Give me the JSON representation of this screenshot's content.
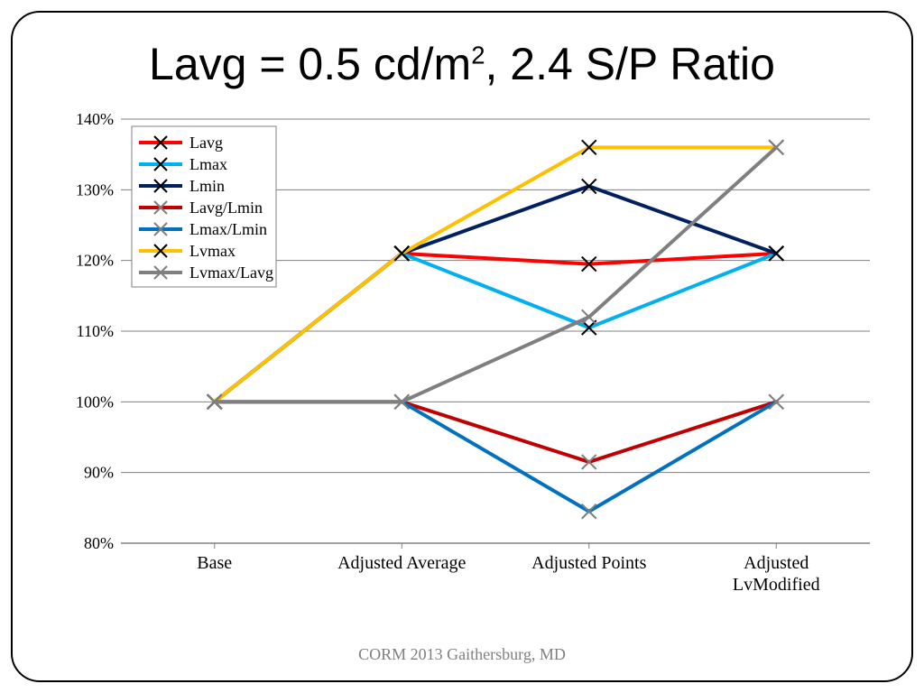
{
  "title_html": "Lavg = 0.5 cd/m<sup>2</sup>, 2.4 S/P Ratio",
  "footer": "CORM 2013 Gaithersburg, MD",
  "chart": {
    "type": "line",
    "categories": [
      "Base",
      "Adjusted Average",
      "Adjusted Points",
      "Adjusted LvModified"
    ],
    "ylim": [
      80,
      140
    ],
    "ytick_step": 10,
    "ytick_suffix": "%",
    "background_color": "#ffffff",
    "grid_color": "#808080",
    "axis_color": "#808080",
    "line_width": 4,
    "marker_size": 8,
    "label_fontsize": 20,
    "tick_fontsize": 18,
    "legend_fontsize": 18,
    "series": [
      {
        "name": "Lavg",
        "color": "#ff0000",
        "marker_stroke": "#000000",
        "values": [
          100,
          121,
          119.5,
          121
        ]
      },
      {
        "name": "Lmax",
        "color": "#00b0f0",
        "marker_stroke": "#000000",
        "values": [
          100,
          121,
          110.5,
          121
        ]
      },
      {
        "name": "Lmin",
        "color": "#002060",
        "marker_stroke": "#000000",
        "values": [
          100,
          121,
          130.5,
          121
        ]
      },
      {
        "name": "Lavg/Lmin",
        "color": "#c00000",
        "marker_stroke": "#7f7f7f",
        "values": [
          100,
          100,
          91.5,
          100
        ]
      },
      {
        "name": "Lmax/Lmin",
        "color": "#0070c0",
        "marker_stroke": "#7f7f7f",
        "values": [
          100,
          100,
          84.5,
          100
        ]
      },
      {
        "name": "Lvmax",
        "color": "#ffc000",
        "marker_stroke": "#000000",
        "values": [
          100,
          121,
          136,
          136
        ]
      },
      {
        "name": "Lvmax/Lavg",
        "color": "#7f7f7f",
        "marker_stroke": "#7f7f7f",
        "values": [
          100,
          100,
          112,
          136
        ]
      }
    ],
    "legend_position": "top-left"
  }
}
